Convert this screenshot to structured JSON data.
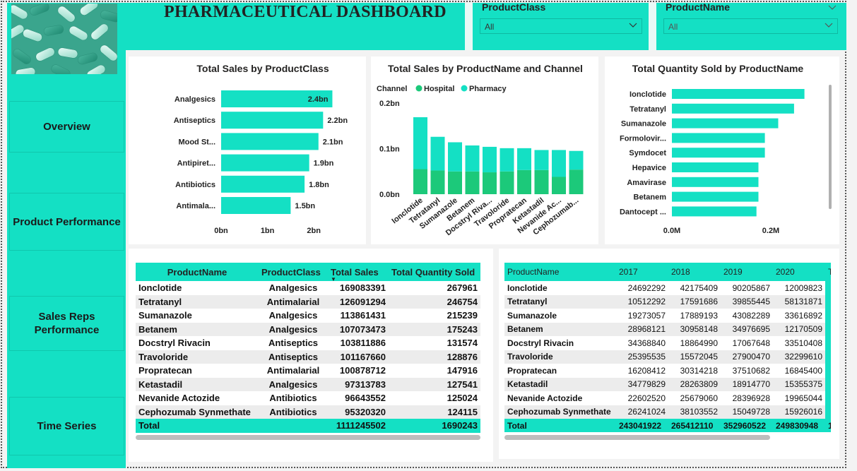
{
  "dashboard": {
    "title": "PHARMACEUTICAL DASHBOARD"
  },
  "colors": {
    "accent": "#14e0c4",
    "hospital": "#1cc97a",
    "pharmacy": "#14e0c4"
  },
  "nav": {
    "items": [
      {
        "label": "Overview"
      },
      {
        "label": "Product Performance"
      },
      {
        "label": "Sales Reps Performance"
      },
      {
        "label": "Time Series"
      }
    ]
  },
  "filters": {
    "product_class": {
      "label": "ProductClass",
      "value": "All"
    },
    "product_name": {
      "label": "ProductName",
      "value": "All"
    }
  },
  "chart_data": [
    {
      "type": "bar",
      "title": "Total Sales by ProductClass",
      "orientation": "horizontal",
      "categories": [
        "Analgesics",
        "Antiseptics",
        "Mood St...",
        "Antipiret...",
        "Antibiotics",
        "Antimala..."
      ],
      "values": [
        2.4,
        2.2,
        2.1,
        1.9,
        1.8,
        1.5
      ],
      "value_labels": [
        "2.4bn",
        "2.2bn",
        "2.1bn",
        "1.9bn",
        "1.8bn",
        "1.5bn"
      ],
      "x_ticks": [
        "0bn",
        "1bn",
        "2bn"
      ],
      "xlim": [
        0,
        2.5
      ],
      "unit": "bn"
    },
    {
      "type": "bar",
      "stacked": true,
      "title": "Total Sales by ProductName and Channel",
      "legend_title": "Channel",
      "legend_position": "top-left",
      "categories": [
        "Ionclotide",
        "Tetratanyl",
        "Sumanazole",
        "Betanem",
        "Docstryl Riva...",
        "Travoloride",
        "Propratecan",
        "Ketastadil",
        "Nevanide Ac...",
        "Cephozumab..."
      ],
      "series": [
        {
          "name": "Hospital",
          "values": [
            0.055,
            0.052,
            0.05,
            0.05,
            0.048,
            0.05,
            0.053,
            0.053,
            0.038,
            0.054
          ]
        },
        {
          "name": "Pharmacy",
          "values": [
            0.114,
            0.074,
            0.064,
            0.057,
            0.056,
            0.051,
            0.048,
            0.044,
            0.059,
            0.041
          ]
        }
      ],
      "y_ticks": [
        "0.0bn",
        "0.1bn",
        "0.2bn"
      ],
      "ylim": [
        0,
        0.2
      ]
    },
    {
      "type": "bar",
      "orientation": "horizontal",
      "title": "Total Quantity Sold by ProductName",
      "categories": [
        "Ionclotide",
        "Tetratanyl",
        "Sumanazole",
        "Formolovir...",
        "Symdocet",
        "Hepavice",
        "Amavirase",
        "Betanem",
        "Dantocept ..."
      ],
      "values": [
        0.268,
        0.247,
        0.215,
        0.188,
        0.188,
        0.175,
        0.175,
        0.175,
        0.171
      ],
      "x_ticks": [
        "0.0M",
        "0.2M"
      ],
      "xlim": [
        0,
        0.3
      ]
    }
  ],
  "table1": {
    "columns": [
      "ProductName",
      "ProductClass",
      "Total Sales",
      "Total Quantity Sold"
    ],
    "rows": [
      [
        "Ionclotide",
        "Analgesics",
        "169083391",
        "267961"
      ],
      [
        "Tetratanyl",
        "Antimalarial",
        "126091294",
        "246754"
      ],
      [
        "Sumanazole",
        "Analgesics",
        "113861431",
        "215239"
      ],
      [
        "Betanem",
        "Analgesics",
        "107073473",
        "175243"
      ],
      [
        "Docstryl Rivacin",
        "Antiseptics",
        "103811886",
        "131574"
      ],
      [
        "Travoloride",
        "Antiseptics",
        "101167660",
        "128876"
      ],
      [
        "Propratecan",
        "Antimalarial",
        "100878712",
        "147916"
      ],
      [
        "Ketastadil",
        "Analgesics",
        "97313783",
        "127541"
      ],
      [
        "Nevanide Actozide",
        "Antibiotics",
        "96643552",
        "125024"
      ],
      [
        "Cephozumab Synmethate",
        "Antibiotics",
        "95320320",
        "124115"
      ]
    ],
    "total": {
      "label": "Total",
      "sales": "1111245502",
      "quantity": "1690243"
    }
  },
  "table2": {
    "columns": [
      "ProductName",
      "2017",
      "2018",
      "2019",
      "2020",
      "T"
    ],
    "rows": [
      [
        "Ionclotide",
        "24692292",
        "42175409",
        "90205867",
        "12009823"
      ],
      [
        "Tetratanyl",
        "10512292",
        "17591686",
        "39855445",
        "58131871"
      ],
      [
        "Sumanazole",
        "19273057",
        "17889193",
        "43082289",
        "33616892"
      ],
      [
        "Betanem",
        "28968121",
        "30958148",
        "34976695",
        "12170509"
      ],
      [
        "Docstryl Rivacin",
        "34368840",
        "18864990",
        "17067648",
        "33510408"
      ],
      [
        "Travoloride",
        "25395535",
        "15572045",
        "27900470",
        "32299610"
      ],
      [
        "Propratecan",
        "16208412",
        "30314218",
        "37510682",
        "16845400"
      ],
      [
        "Ketastadil",
        "34779829",
        "28263809",
        "18914770",
        "15355375"
      ],
      [
        "Nevanide Actozide",
        "22602520",
        "25679060",
        "28396928",
        "19965044"
      ],
      [
        "Cephozumab Synmethate",
        "26241024",
        "38103552",
        "15049728",
        "15926016"
      ]
    ],
    "total": [
      "Total",
      "243041922",
      "265412110",
      "352960522",
      "249830948",
      "1"
    ]
  }
}
